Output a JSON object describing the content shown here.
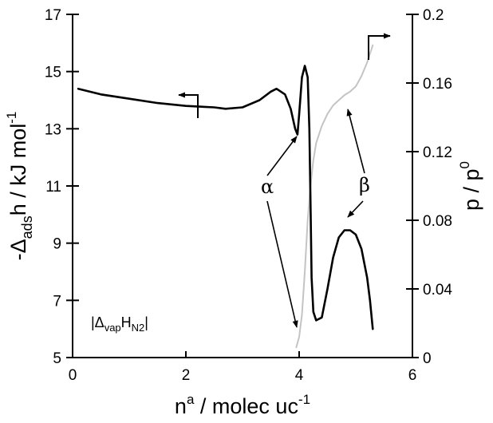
{
  "chart_data": {
    "type": "line",
    "xlabel": {
      "main": "n",
      "sup": "a",
      "rest": " / molec uc",
      "sup2": "-1"
    },
    "ylabel_left": {
      "prefix": "-Δ",
      "sub": "ads",
      "mid": "h",
      "rest": " / kJ mol",
      "sup": "-1"
    },
    "ylabel_right": {
      "p": "p / p",
      "sup": "0"
    },
    "xlim": [
      0,
      6
    ],
    "ylim_left": [
      5,
      17
    ],
    "ylim_right": [
      0,
      0.2
    ],
    "x_ticks": [
      "0",
      "2",
      "4",
      "6"
    ],
    "x_tick_values": [
      0,
      2,
      4,
      6
    ],
    "y_left_ticks": [
      "5",
      "7",
      "9",
      "11",
      "13",
      "15",
      "17"
    ],
    "y_left_tick_values": [
      5,
      7,
      9,
      11,
      13,
      15,
      17
    ],
    "y_right_ticks": [
      "0",
      "0.04",
      "0.08",
      "0.12",
      "0.16",
      "0.2"
    ],
    "y_right_tick_values": [
      0,
      0.04,
      0.08,
      0.12,
      0.16,
      0.2
    ],
    "grid": false,
    "series": [
      {
        "axis": "left",
        "color": "#000000",
        "x": [
          0.1,
          0.5,
          1.0,
          1.5,
          2.0,
          2.5,
          2.7,
          3.0,
          3.3,
          3.5,
          3.6,
          3.75,
          3.85,
          3.93,
          3.97,
          4.0,
          4.05,
          4.1,
          4.15,
          4.18,
          4.2,
          4.22,
          4.25,
          4.3,
          4.4,
          4.5,
          4.6,
          4.7,
          4.8,
          4.9,
          5.0,
          5.1,
          5.2,
          5.25,
          5.3
        ],
        "y": [
          14.4,
          14.2,
          14.05,
          13.9,
          13.8,
          13.75,
          13.7,
          13.75,
          14.0,
          14.3,
          14.4,
          14.2,
          13.7,
          13.0,
          12.8,
          13.5,
          14.8,
          15.2,
          14.8,
          13.0,
          10.5,
          7.8,
          6.6,
          6.3,
          6.4,
          7.4,
          8.5,
          9.2,
          9.45,
          9.45,
          9.3,
          8.8,
          7.8,
          7.0,
          6.0
        ]
      },
      {
        "axis": "right",
        "color": "#c4c4c4",
        "x": [
          3.95,
          4.0,
          4.05,
          4.1,
          4.15,
          4.2,
          4.25,
          4.3,
          4.4,
          4.5,
          4.6,
          4.7,
          4.8,
          4.9,
          5.0,
          5.1,
          5.2,
          5.3
        ],
        "y": [
          0.006,
          0.012,
          0.025,
          0.05,
          0.08,
          0.1,
          0.115,
          0.125,
          0.135,
          0.142,
          0.147,
          0.15,
          0.153,
          0.155,
          0.158,
          0.164,
          0.172,
          0.182
        ]
      }
    ],
    "annotations": {
      "alpha": "α",
      "beta": "β",
      "legend_box": {
        "open": "|Δ",
        "sub1": "vap",
        "mid": "H",
        "sub2": "N2",
        "close": "|"
      }
    }
  }
}
